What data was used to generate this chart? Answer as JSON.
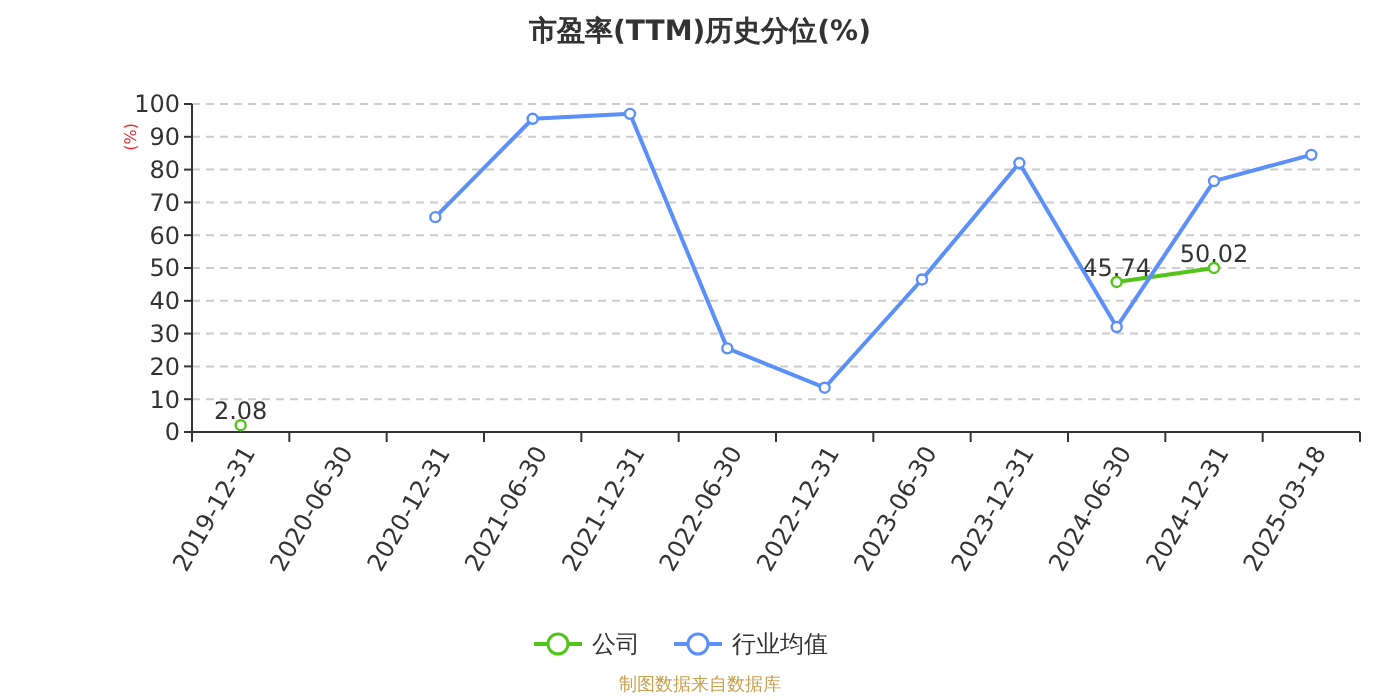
{
  "chart_data": {
    "type": "line",
    "title": "市盈率(TTM)历史分位(%)",
    "ylabel": "(%)",
    "categories": [
      "2019-12-31",
      "2020-06-30",
      "2020-12-31",
      "2021-06-30",
      "2021-12-31",
      "2022-06-30",
      "2022-12-31",
      "2023-06-30",
      "2023-12-31",
      "2024-06-30",
      "2024-12-31",
      "2025-03-18"
    ],
    "series": [
      {
        "name": "公司",
        "color": "#52c41a",
        "values": [
          2.08,
          null,
          null,
          null,
          null,
          null,
          null,
          null,
          null,
          45.74,
          50.02,
          null
        ],
        "value_labels": [
          "2.08",
          null,
          null,
          null,
          null,
          null,
          null,
          null,
          null,
          "45.74",
          "50.02",
          null
        ]
      },
      {
        "name": "行业均值",
        "color": "#5b8ff9",
        "values": [
          null,
          null,
          65.5,
          95.5,
          97,
          25.5,
          13.5,
          46.5,
          82,
          32,
          76.5,
          84.5
        ]
      }
    ],
    "ylim": [
      0,
      100
    ],
    "yticks": [
      0,
      10,
      20,
      30,
      40,
      50,
      60,
      70,
      80,
      90,
      100
    ],
    "grid": "y",
    "legend": "bottom",
    "marker": "circle",
    "line_style": "solid",
    "annotations": [
      "制图数据来自数据库"
    ]
  }
}
